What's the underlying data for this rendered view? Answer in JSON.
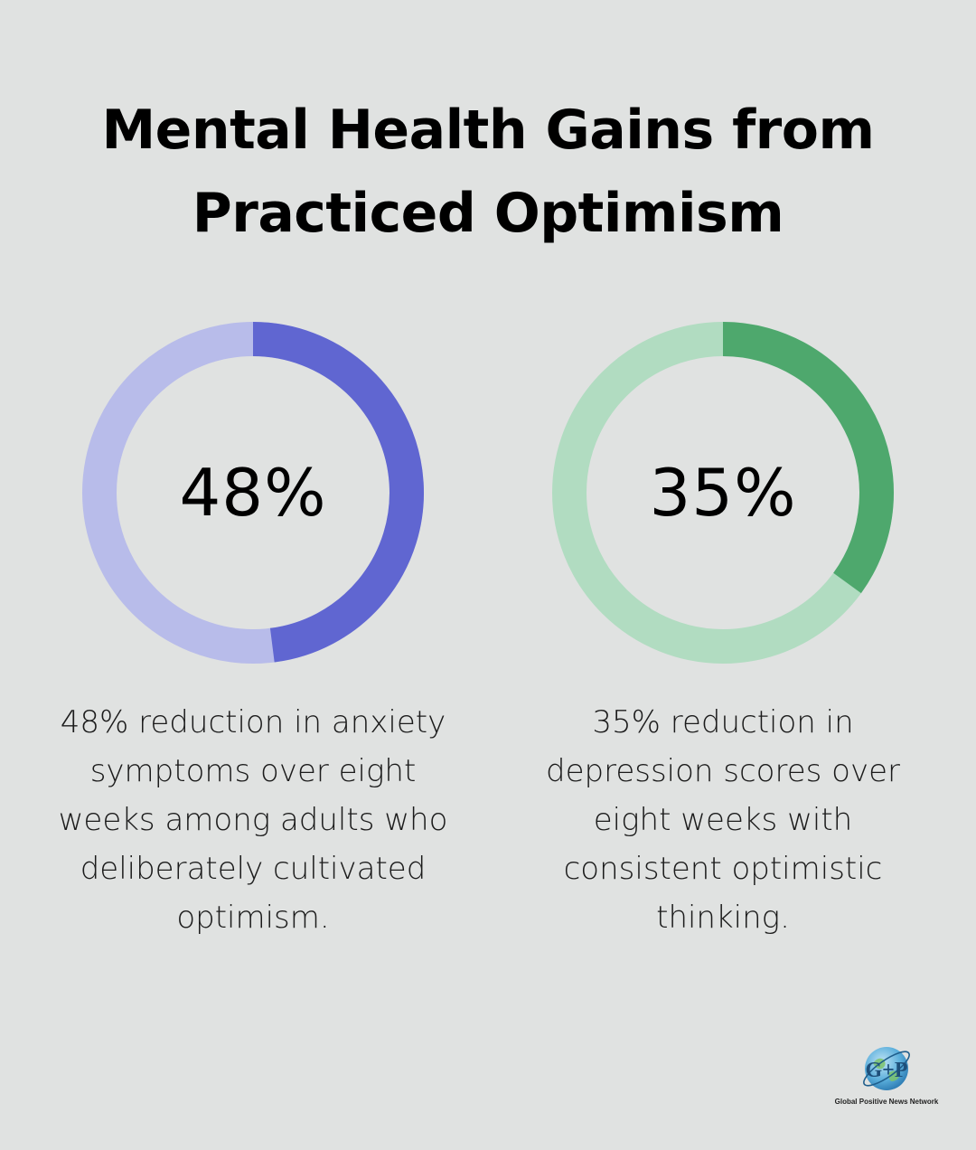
{
  "title": {
    "line1": "Mental Health Gains from",
    "line2": "Practiced Optimism"
  },
  "chart_data": [
    {
      "type": "pie",
      "label": "48%",
      "value": 48,
      "max": 100,
      "colors": {
        "filled": "#6066d1",
        "track": "#b8bcea"
      },
      "description": [
        "48% reduction in anxiety",
        "symptoms over eight",
        "weeks among adults who",
        "deliberately cultivated",
        "optimism."
      ]
    },
    {
      "type": "pie",
      "label": "35%",
      "value": 35,
      "max": 100,
      "colors": {
        "filled": "#4ea86d",
        "track": "#b1dcc1"
      },
      "description": [
        "35% reduction in",
        "depression scores over",
        "eight weeks with",
        "consistent optimistic",
        "thinking."
      ]
    }
  ],
  "logo": {
    "mark": "G+P",
    "text": "Global Positive News Network",
    "icon": "globe-logo-icon"
  },
  "colors": {
    "background": "#e0e2e1"
  }
}
